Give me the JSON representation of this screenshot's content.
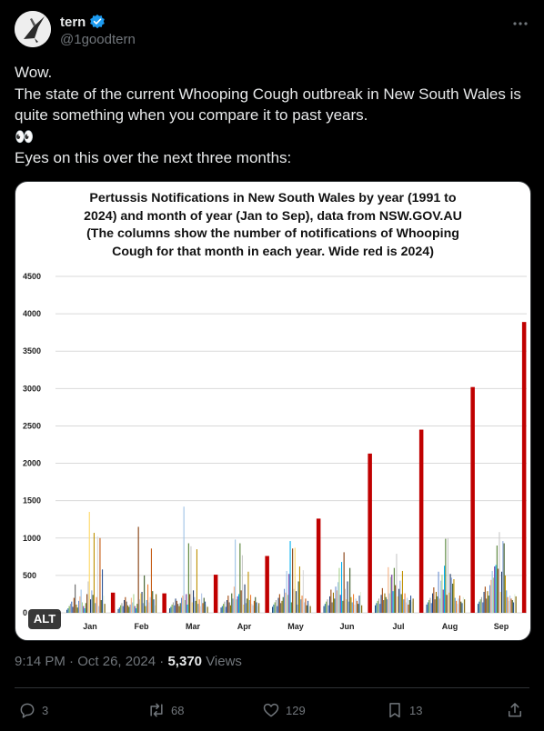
{
  "author": {
    "name": "tern",
    "handle": "@1goodtern",
    "avatar_icon": "tern-bird-avatar",
    "verified_color": "#1d9bf0"
  },
  "post": {
    "lines": [
      "Wow.",
      "The state of the current Whooping Cough outbreak in New South Wales is",
      "quite something when you compare it to past years.",
      "👀",
      "Eyes on this over the next three months:"
    ]
  },
  "image": {
    "alt_label": "ALT"
  },
  "chart_data": {
    "type": "bar",
    "title_lines": [
      "Pertussis Notifications in New South Wales by year (1991 to",
      "2024) and month of year (Jan to Sep), data from NSW.GOV.AU",
      "(The columns show the number of notifications of Whooping",
      "Cough for that month in each year. Wide red is 2024)"
    ],
    "categories": [
      "Jan",
      "Feb",
      "Mar",
      "Apr",
      "May",
      "Jun",
      "Jul",
      "Aug",
      "Sep"
    ],
    "y_ticks": [
      "0",
      "500",
      "1000",
      "1500",
      "2000",
      "2500",
      "3000",
      "3500",
      "4000",
      "4500"
    ],
    "ylim": [
      0,
      4500
    ],
    "grid": true,
    "highlight_series": {
      "name": "2024",
      "color": "#c00000",
      "values": [
        270,
        260,
        510,
        760,
        1260,
        2130,
        2450,
        3020,
        3890
      ]
    },
    "series_colors": [
      "#1f4e79",
      "#2e75b6",
      "#70ad47",
      "#a5a5a5",
      "#4472c4",
      "#264478",
      "#9e480e",
      "#636363",
      "#997300",
      "#43682b",
      "#698ed0",
      "#f4b183",
      "#9dc3e6",
      "#a9d18e",
      "#7030a0",
      "#00b0f0",
      "#548235",
      "#843c0c",
      "#c9c9c9",
      "#ffd966",
      "#203864",
      "#8faadc",
      "#385723",
      "#bf9000",
      "#5b9bd5",
      "#ed7d31",
      "#d9d9d9",
      "#b4c7e7",
      "#c55a11",
      "#375623",
      "#2f5597",
      "#e2f0d9",
      "#7f6000"
    ],
    "background_series": [
      [
        40,
        60,
        90,
        120,
        150,
        80,
        200,
        380,
        110,
        70,
        160,
        220,
        310,
        140,
        90,
        60,
        130,
        250,
        420,
        1350,
        180,
        300,
        240,
        1070,
        130,
        210,
        1020,
        90,
        1000,
        170,
        580,
        230,
        120
      ],
      [
        50,
        70,
        100,
        130,
        90,
        170,
        210,
        150,
        100,
        80,
        110,
        200,
        140,
        250,
        90,
        60,
        120,
        1150,
        180,
        260,
        280,
        130,
        500,
        90,
        170,
        380,
        140,
        210,
        860,
        290,
        180,
        100,
        250
      ],
      [
        60,
        80,
        110,
        140,
        100,
        190,
        160,
        120,
        90,
        130,
        200,
        230,
        1420,
        170,
        250,
        110,
        930,
        250,
        890,
        140,
        300,
        210,
        160,
        850,
        120,
        180,
        90,
        260,
        130,
        200,
        150,
        110,
        80
      ],
      [
        70,
        90,
        120,
        150,
        80,
        170,
        230,
        140,
        100,
        260,
        190,
        350,
        980,
        180,
        220,
        250,
        930,
        300,
        770,
        110,
        380,
        130,
        190,
        550,
        170,
        240,
        120,
        100,
        160,
        210,
        140,
        90,
        130
      ],
      [
        80,
        110,
        140,
        170,
        90,
        200,
        250,
        130,
        160,
        210,
        320,
        270,
        560,
        240,
        520,
        960,
        140,
        860,
        320,
        870,
        290,
        110,
        420,
        620,
        180,
        230,
        570,
        140,
        190,
        100,
        160,
        120,
        90
      ],
      [
        90,
        120,
        150,
        180,
        100,
        220,
        310,
        140,
        270,
        190,
        350,
        300,
        410,
        600,
        240,
        680,
        160,
        810,
        320,
        180,
        420,
        150,
        600,
        210,
        140,
        250,
        110,
        190,
        160,
        120,
        230,
        280,
        100
      ],
      [
        100,
        130,
        160,
        190,
        120,
        240,
        330,
        170,
        260,
        210,
        180,
        610,
        260,
        480,
        510,
        290,
        600,
        370,
        790,
        220,
        320,
        430,
        250,
        560,
        180,
        260,
        140,
        200,
        110,
        170,
        230,
        150,
        190
      ],
      [
        110,
        140,
        170,
        200,
        130,
        260,
        340,
        180,
        280,
        220,
        550,
        190,
        430,
        510,
        310,
        630,
        990,
        240,
        1000,
        270,
        520,
        470,
        390,
        450,
        200,
        160,
        120,
        190,
        230,
        150,
        130,
        210,
        180
      ],
      [
        120,
        150,
        180,
        210,
        140,
        280,
        350,
        190,
        290,
        230,
        370,
        440,
        560,
        470,
        620,
        640,
        900,
        590,
        1080,
        280,
        550,
        960,
        930,
        500,
        300,
        210,
        160,
        230,
        190,
        170,
        140,
        250,
        220
      ]
    ]
  },
  "meta": {
    "time": "9:14 PM",
    "separator": " · ",
    "date": "Oct 26, 2024",
    "views_count": "5,370",
    "views_label": "Views"
  },
  "actions": {
    "replies": "3",
    "reposts": "68",
    "likes": "129",
    "bookmarks": "13"
  }
}
